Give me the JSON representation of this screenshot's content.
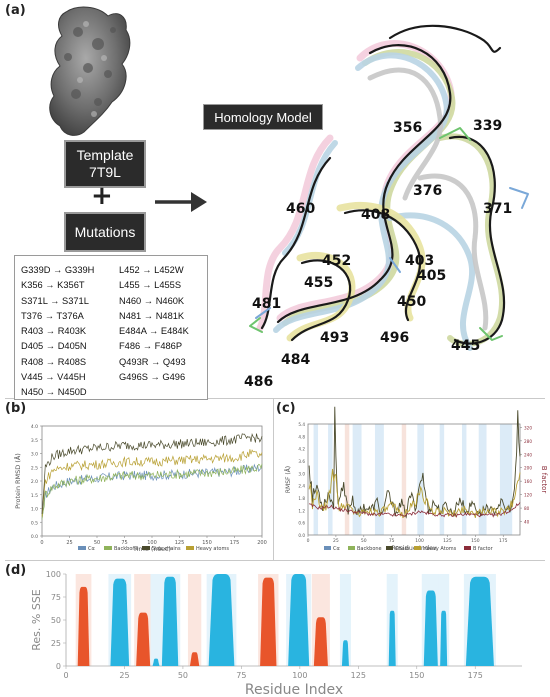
{
  "panels": {
    "a": "(a)",
    "b": "(b)",
    "c": "(c)",
    "d": "(d)"
  },
  "template_box": {
    "line1": "Template",
    "line2": "7T9L"
  },
  "plus": "+",
  "mutations_box": {
    "label": "Mutations"
  },
  "homology_box": {
    "label": "Homology Model"
  },
  "mutations": [
    {
      "from": "G339D",
      "to": "G339H"
    },
    {
      "from": "L452",
      "to": "L452W"
    },
    {
      "from": "K356",
      "to": "K356T"
    },
    {
      "from": "L455",
      "to": "L455S"
    },
    {
      "from": "S371L",
      "to": "S371L"
    },
    {
      "from": "N460",
      "to": "N460K"
    },
    {
      "from": "T376",
      "to": "T376A"
    },
    {
      "from": "N481",
      "to": "N481K"
    },
    {
      "from": "R403",
      "to": "R403K"
    },
    {
      "from": "E484A",
      "to": "E484K"
    },
    {
      "from": "D405",
      "to": "D405N"
    },
    {
      "from": "F486",
      "to": "F486P"
    },
    {
      "from": "R408",
      "to": "R408S"
    },
    {
      "from": "Q493R",
      "to": "Q493"
    },
    {
      "from": "V445",
      "to": "V445H"
    },
    {
      "from": "G496S",
      "to": "G496"
    },
    {
      "from": "N450",
      "to": "N450D"
    }
  ],
  "arrow_glyph": "→",
  "residue_labels": [
    "356",
    "339",
    "376",
    "371",
    "460",
    "408",
    "452",
    "403",
    "405",
    "455",
    "450",
    "481",
    "493",
    "496",
    "445",
    "484",
    "486"
  ],
  "colors": {
    "calpha": "#6a8fb9",
    "backbone": "#8fb35a",
    "sidechains": "#4a4a2c",
    "heavy": "#b8a033",
    "bfactor": "#8b2d3a",
    "helix": "#e8552b",
    "strand": "#29b4e0",
    "strand_band": "#dcebf7",
    "helix_band": "#f7e3dc",
    "template_bg": "#2b2b2b"
  },
  "chart_data": [
    {
      "id": "b",
      "type": "line",
      "xlabel": "Time (nsec)",
      "ylabel": "Protein RMSD (Å)",
      "xlim": [
        0,
        200
      ],
      "ylim": [
        0.0,
        4.0
      ],
      "xticks": [
        "0",
        "25",
        "50",
        "75",
        "100",
        "125",
        "150",
        "175",
        "200"
      ],
      "yticks": [
        "0.0",
        "0.5",
        "1.0",
        "1.5",
        "2.0",
        "2.5",
        "3.0",
        "3.5",
        "4.0"
      ],
      "legend": [
        "Cα",
        "Backbone",
        "Side chains",
        "Heavy atoms"
      ],
      "legend_position": "bottom",
      "series": [
        {
          "name": "Cα",
          "x": [
            0,
            3,
            10,
            25,
            50,
            75,
            100,
            125,
            150,
            175,
            190,
            200
          ],
          "values": [
            0.6,
            1.5,
            1.8,
            2.0,
            2.1,
            2.2,
            2.2,
            2.25,
            2.3,
            2.35,
            2.45,
            2.5
          ]
        },
        {
          "name": "Backbone",
          "x": [
            0,
            3,
            10,
            25,
            50,
            75,
            100,
            125,
            150,
            175,
            190,
            200
          ],
          "values": [
            0.6,
            1.5,
            1.8,
            2.0,
            2.1,
            2.2,
            2.2,
            2.25,
            2.3,
            2.35,
            2.45,
            2.5
          ]
        },
        {
          "name": "Side chains",
          "x": [
            0,
            3,
            10,
            25,
            50,
            75,
            100,
            125,
            150,
            175,
            190,
            200
          ],
          "values": [
            0.8,
            2.5,
            2.9,
            3.1,
            3.2,
            3.3,
            3.3,
            3.35,
            3.4,
            3.5,
            3.6,
            3.5
          ]
        },
        {
          "name": "Heavy atoms",
          "x": [
            0,
            3,
            10,
            25,
            50,
            75,
            100,
            125,
            150,
            175,
            190,
            200
          ],
          "values": [
            0.7,
            2.0,
            2.4,
            2.55,
            2.6,
            2.7,
            2.7,
            2.75,
            2.8,
            2.85,
            3.0,
            2.9
          ]
        }
      ]
    },
    {
      "id": "c",
      "type": "line",
      "xlabel": "Residue Index",
      "ylabel": "RMSF (Å)",
      "y2label": "B factor",
      "xlim": [
        0,
        190
      ],
      "ylim": [
        0.0,
        5.4
      ],
      "y2lim": [
        0,
        330
      ],
      "xticks": [
        "0",
        "25",
        "50",
        "75",
        "100",
        "125",
        "150",
        "175"
      ],
      "yticks": [
        "0.0",
        "0.6",
        "1.2",
        "1.8",
        "2.4",
        "3.0",
        "3.6",
        "4.2",
        "4.8",
        "5.4"
      ],
      "y2ticks": [
        "40",
        "80",
        "120",
        "160",
        "200",
        "240",
        "280",
        "320"
      ],
      "legend": [
        "Cα",
        "Backbone",
        "Chain",
        "Heavy Atoms",
        "B factor"
      ],
      "legend_position": "bottom",
      "strand_bands": [
        [
          5,
          9
        ],
        [
          18,
          22
        ],
        [
          40,
          48
        ],
        [
          60,
          68
        ],
        [
          98,
          104
        ],
        [
          118,
          122
        ],
        [
          138,
          142
        ],
        [
          153,
          160
        ],
        [
          172,
          183
        ]
      ],
      "helix_bands": [
        [
          33,
          37
        ],
        [
          84,
          88
        ]
      ],
      "series": [
        {
          "name": "Chain",
          "x": [
            1,
            4,
            8,
            13,
            18,
            23,
            24,
            27,
            32,
            36,
            40,
            44,
            50,
            56,
            62,
            66,
            72,
            78,
            84,
            88,
            92,
            96,
            102,
            108,
            113,
            119,
            124,
            130,
            136,
            142,
            148,
            154,
            160,
            166,
            172,
            178,
            183,
            186,
            188,
            190
          ],
          "values": [
            3.6,
            1.8,
            2.4,
            1.4,
            2.0,
            1.5,
            5.4,
            1.6,
            2.2,
            1.2,
            1.8,
            1.0,
            1.4,
            1.2,
            1.6,
            1.0,
            2.0,
            1.1,
            1.5,
            1.0,
            2.0,
            1.3,
            3.0,
            1.2,
            1.6,
            1.1,
            1.5,
            1.0,
            1.8,
            1.1,
            1.6,
            1.0,
            1.4,
            1.1,
            1.6,
            1.2,
            1.4,
            2.8,
            5.2,
            4.0
          ]
        },
        {
          "name": "Heavy Atoms",
          "x": [
            1,
            4,
            8,
            13,
            18,
            24,
            28,
            35,
            45,
            55,
            65,
            75,
            85,
            95,
            102,
            110,
            120,
            130,
            140,
            150,
            160,
            170,
            180,
            186,
            190
          ],
          "values": [
            2.6,
            1.4,
            1.9,
            1.2,
            1.6,
            3.4,
            1.3,
            1.5,
            1.0,
            1.2,
            1.1,
            1.4,
            1.0,
            1.5,
            2.2,
            1.1,
            1.2,
            1.0,
            1.3,
            1.0,
            1.2,
            1.1,
            1.2,
            2.0,
            3.0
          ]
        },
        {
          "name": "B factor",
          "x": [
            1,
            10,
            20,
            30,
            40,
            50,
            60,
            70,
            80,
            90,
            100,
            110,
            120,
            130,
            140,
            150,
            160,
            170,
            180,
            190
          ],
          "values": [
            90,
            80,
            85,
            75,
            70,
            65,
            60,
            62,
            58,
            60,
            70,
            62,
            60,
            58,
            62,
            60,
            58,
            60,
            70,
            95
          ]
        }
      ]
    },
    {
      "id": "d",
      "type": "area",
      "xlabel": "Residue Index",
      "ylabel": "Res. % SSE",
      "xlim": [
        0,
        195
      ],
      "ylim": [
        0,
        100
      ],
      "xticks": [
        "0",
        "25",
        "50",
        "75",
        "100",
        "125",
        "150",
        "175"
      ],
      "yticks": [
        "0",
        "25",
        "50",
        "75",
        "100"
      ],
      "series": [
        {
          "name": "",
          "type": "helix",
          "segments": [
            {
              "start": 5,
              "end": 10,
              "value": 86
            },
            {
              "start": 30,
              "end": 36,
              "value": 58
            },
            {
              "start": 53,
              "end": 57,
              "value": 15
            },
            {
              "start": 83,
              "end": 90,
              "value": 96
            },
            {
              "start": 106,
              "end": 112,
              "value": 53
            }
          ]
        },
        {
          "name": "",
          "type": "strand",
          "segments": [
            {
              "start": 19,
              "end": 27,
              "value": 95
            },
            {
              "start": 37,
              "end": 40,
              "value": 8
            },
            {
              "start": 41,
              "end": 48,
              "value": 97
            },
            {
              "start": 61,
              "end": 72,
              "value": 100
            },
            {
              "start": 95,
              "end": 104,
              "value": 100
            },
            {
              "start": 118,
              "end": 121,
              "value": 28
            },
            {
              "start": 138,
              "end": 141,
              "value": 60
            },
            {
              "start": 153,
              "end": 159,
              "value": 82
            },
            {
              "start": 160,
              "end": 163,
              "value": 60
            },
            {
              "start": 171,
              "end": 183,
              "value": 97
            }
          ]
        }
      ]
    }
  ]
}
